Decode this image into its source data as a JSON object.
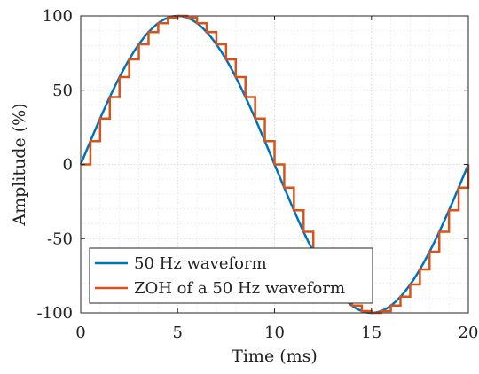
{
  "chart_data": {
    "type": "line",
    "xlabel": "Time (ms)",
    "ylabel": "Amplitude (%)",
    "xlim": [
      0,
      20
    ],
    "ylim": [
      -100,
      100
    ],
    "xticks": [
      0,
      5,
      10,
      15,
      20
    ],
    "yticks": [
      -100,
      -50,
      0,
      50,
      100
    ],
    "xtick_labels": [
      "0",
      "5",
      "10",
      "15",
      "20"
    ],
    "ytick_labels": [
      "-100",
      "-50",
      "0",
      "50",
      "100"
    ],
    "minor_xtick_step": 1,
    "minor_ytick_step": 10,
    "grid": true,
    "minor_grid": true,
    "legend_position": "bottom-left",
    "series": [
      {
        "name": "50 Hz waveform",
        "color": "#0072BD",
        "function": "100*sin(2*pi*50*t)",
        "t_start_ms": 0,
        "t_end_ms": 20
      },
      {
        "name": "ZOH of a 50 Hz waveform",
        "color": "#D95319",
        "function": "zero-order hold of 100*sin(2*pi*50*t)",
        "sample_period_ms": 0.5,
        "t_start_ms": 0,
        "t_end_ms": 20
      }
    ]
  }
}
